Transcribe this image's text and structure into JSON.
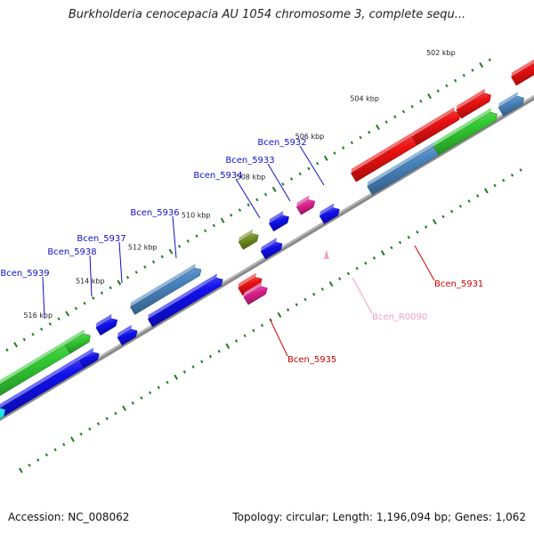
{
  "title": "Burkholderia cenocepacia AU 1054 chromosome 3, complete sequ...",
  "footer": {
    "accession": "Accession: NC_008062",
    "topology": "Topology: circular; Length: 1,196,094 bp; Genes: 1,062"
  },
  "colors": {
    "backbone": "#8a8a8a",
    "ticks": "#1f7a1f",
    "red": "#ee1111",
    "green": "#33cc33",
    "steelblue": "#4a86c0",
    "blue": "#1010ee",
    "magenta": "#e0208e",
    "olive": "#6e8f1f",
    "cyan": "#14e6f0",
    "label_blue": "#1010cc",
    "label_red": "#cc0000",
    "label_pink": "#f0a0c8"
  },
  "scale_labels": [
    "502 kbp",
    "504 kbp",
    "506 kbp",
    "508 kbp",
    "510 kbp",
    "512 kbp",
    "514 kbp",
    "516 kbp"
  ],
  "gene_labels": [
    {
      "text": "Bcen_5932",
      "color": "blue"
    },
    {
      "text": "Bcen_5933",
      "color": "blue"
    },
    {
      "text": "Bcen_5934",
      "color": "blue"
    },
    {
      "text": "Bcen_5936",
      "color": "blue"
    },
    {
      "text": "Bcen_5937",
      "color": "blue"
    },
    {
      "text": "Bcen_5938",
      "color": "blue"
    },
    {
      "text": "Bcen_5939",
      "color": "blue"
    },
    {
      "text": "Bcen_5931",
      "color": "red"
    },
    {
      "text": "Bcen_5935",
      "color": "red"
    },
    {
      "text": "Bcen_R0090",
      "color": "pink"
    }
  ]
}
